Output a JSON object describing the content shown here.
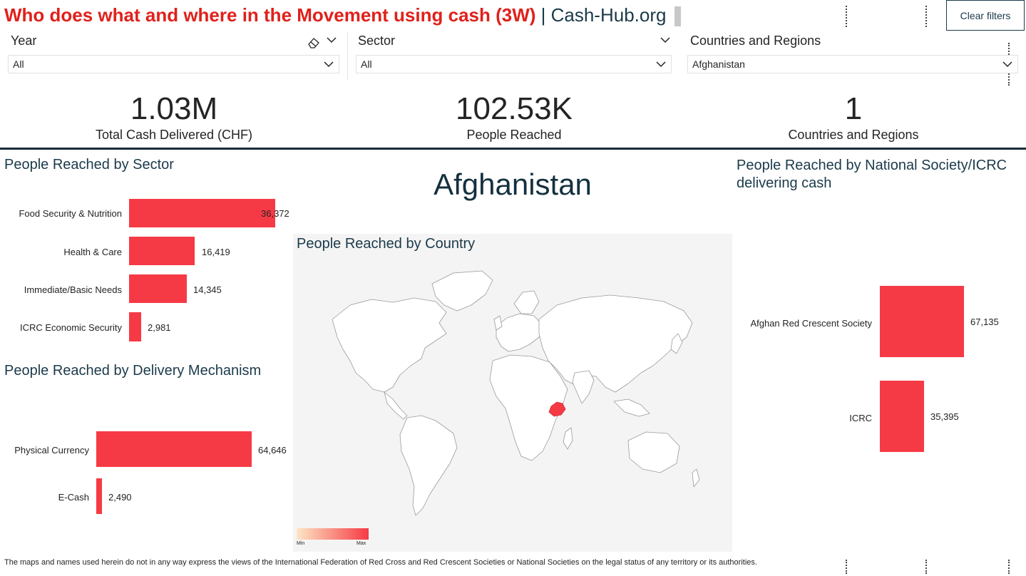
{
  "header": {
    "title_red": "Who does what and where in the Movement using cash (3W)",
    "separator": " | ",
    "site": "Cash-Hub.org",
    "clear_filters_label": "Clear filters"
  },
  "slicers": {
    "year": {
      "title": "Year",
      "value": "All"
    },
    "sector": {
      "title": "Sector",
      "value": "All"
    },
    "countries": {
      "title": "Countries and Regions",
      "value": "Afghanistan"
    }
  },
  "kpis": [
    {
      "value": "1.03M",
      "label": "Total Cash Delivered (CHF)"
    },
    {
      "value": "102.53K",
      "label": "People Reached"
    },
    {
      "value": "1",
      "label": "Countries and Regions"
    }
  ],
  "selected_country": "Afghanistan",
  "sector_chart": {
    "title": "People Reached by Sector",
    "items": [
      {
        "label": "Food Security & Nutrition",
        "value_text": "36,372"
      },
      {
        "label": "Health & Care",
        "value_text": "16,419"
      },
      {
        "label": "Immediate/Basic Needs",
        "value_text": "14,345"
      },
      {
        "label": "ICRC Economic Security",
        "value_text": "2,981"
      }
    ]
  },
  "delivery_chart": {
    "title": "People Reached by Delivery Mechanism",
    "items": [
      {
        "label": "Physical Currency",
        "value_text": "64,646"
      },
      {
        "label": "E-Cash",
        "value_text": "2,490"
      }
    ]
  },
  "map": {
    "title": "People Reached by Country",
    "legend_min": "Min",
    "legend_max": "Max",
    "highlight_color": "#f63a45"
  },
  "society_chart": {
    "title": "People Reached by National Society/ICRC delivering cash",
    "items": [
      {
        "label": "Afghan Red Crescent Society",
        "value_text": "67,135"
      },
      {
        "label": "ICRC",
        "value_text": "35,395"
      }
    ]
  },
  "colors": {
    "brand_red": "#e0211b",
    "bar": "#f63a45",
    "navy": "#1b3a4b"
  },
  "footer": "The maps and names used herein do not in any way express the views of the International Federation of Red Cross and Red Crescent Societies or National Societies on the legal status of any territory or its authorities."
}
